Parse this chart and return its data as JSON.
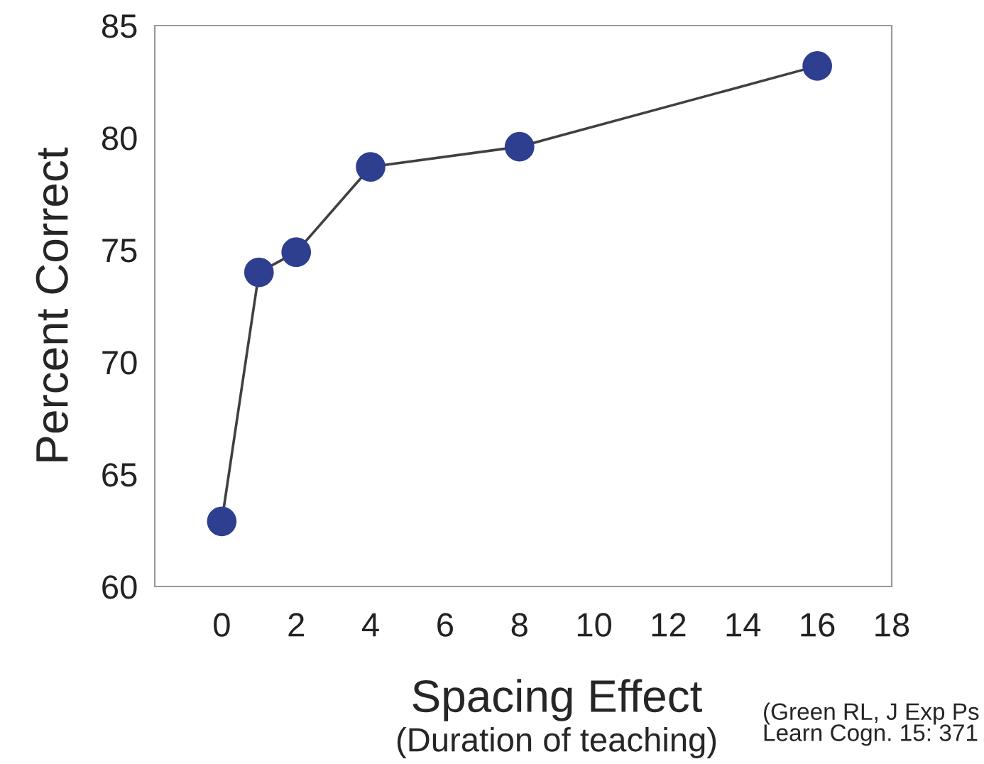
{
  "chart_data": {
    "type": "line",
    "xlabel": "Spacing Effect",
    "subtitle": "(Duration of teaching)",
    "ylabel": "Percent Correct",
    "x": [
      0,
      1,
      2,
      4,
      8,
      16
    ],
    "series": [
      {
        "color": "#2e3f8f",
        "values": [
          62.9,
          74.0,
          74.9,
          78.7,
          79.6,
          83.2
        ]
      }
    ],
    "xlim": [
      -1.8,
      18
    ],
    "xticks": [
      0,
      2,
      4,
      6,
      8,
      10,
      12,
      14,
      16,
      18
    ],
    "ylim": [
      60,
      85
    ],
    "yticks": [
      60,
      65,
      70,
      75,
      80,
      85
    ],
    "marker": "circle",
    "line_style": "solid",
    "grid": false,
    "legend": false,
    "annotations": [
      "(Green RL, J Exp Ps\nLearn Cogn. 15: 371"
    ]
  }
}
